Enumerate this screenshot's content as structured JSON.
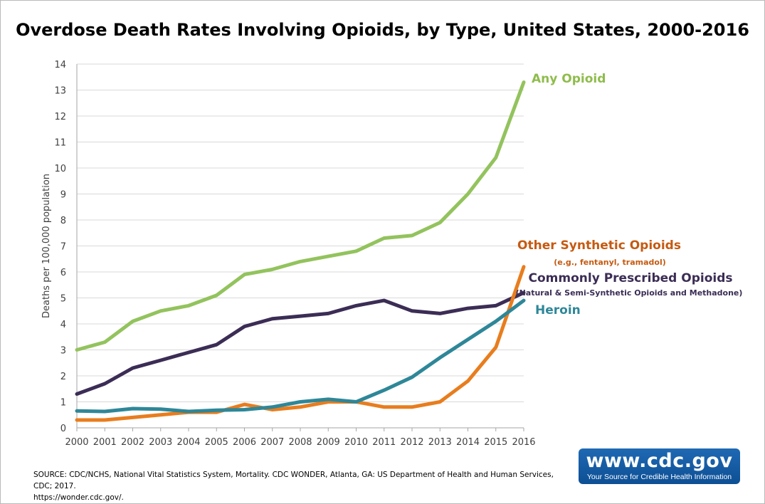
{
  "chart_data": {
    "type": "line",
    "title": "Overdose Death Rates Involving Opioids, by Type, United States, 2000-2016",
    "ylabel": "Deaths per 100,000 population",
    "xlabel": "",
    "ylim": [
      0,
      14
    ],
    "yticks": [
      0,
      1,
      2,
      3,
      4,
      5,
      6,
      7,
      8,
      9,
      10,
      11,
      12,
      13,
      14
    ],
    "grid": true,
    "x": [
      "2000",
      "2001",
      "2002",
      "2003",
      "2004",
      "2005",
      "2006",
      "2007",
      "2008",
      "2009",
      "2010",
      "2011",
      "2012",
      "2013",
      "2014",
      "2015",
      "2016"
    ],
    "series": [
      {
        "name": "Any Opioid",
        "subtitle": "",
        "color": "#93c35d",
        "label_color": "#8fbc4c",
        "values": [
          3.0,
          3.3,
          4.1,
          4.5,
          4.7,
          5.1,
          5.9,
          6.1,
          6.4,
          6.6,
          6.8,
          7.3,
          7.4,
          7.9,
          9.0,
          10.4,
          13.3
        ]
      },
      {
        "name": "Other Synthetic Opioids",
        "subtitle": "(e.g., fentanyl, tramadol)",
        "color": "#e87d1e",
        "label_color": "#c55a11",
        "values": [
          0.3,
          0.3,
          0.4,
          0.5,
          0.6,
          0.6,
          0.9,
          0.7,
          0.8,
          1.0,
          1.0,
          0.8,
          0.8,
          1.0,
          1.8,
          3.1,
          6.2
        ]
      },
      {
        "name": "Commonly Prescribed Opioids",
        "subtitle": "(Natural & Semi-Synthetic Opioids and Methadone)",
        "color": "#3b2d55",
        "label_color": "#3b2d55",
        "values": [
          1.3,
          1.7,
          2.3,
          2.6,
          2.9,
          3.2,
          3.9,
          4.2,
          4.3,
          4.4,
          4.7,
          4.9,
          4.5,
          4.4,
          4.6,
          4.7,
          5.2
        ]
      },
      {
        "name": "Heroin",
        "subtitle": "",
        "color": "#2e8798",
        "label_color": "#2e8798",
        "values": [
          0.65,
          0.63,
          0.74,
          0.72,
          0.63,
          0.68,
          0.7,
          0.8,
          1.0,
          1.1,
          1.0,
          1.45,
          1.95,
          2.7,
          3.4,
          4.1,
          4.9
        ]
      }
    ]
  },
  "source": {
    "line1": "SOURCE: CDC/NCHS, National Vital Statistics System, Mortality. CDC WONDER, Atlanta, GA: US Department of Health and Human Services, CDC; 2017.",
    "line2": "https://wonder.cdc.gov/."
  },
  "logo": {
    "url": "www.cdc.gov",
    "tagline": "Your Source for Credible Health Information"
  }
}
